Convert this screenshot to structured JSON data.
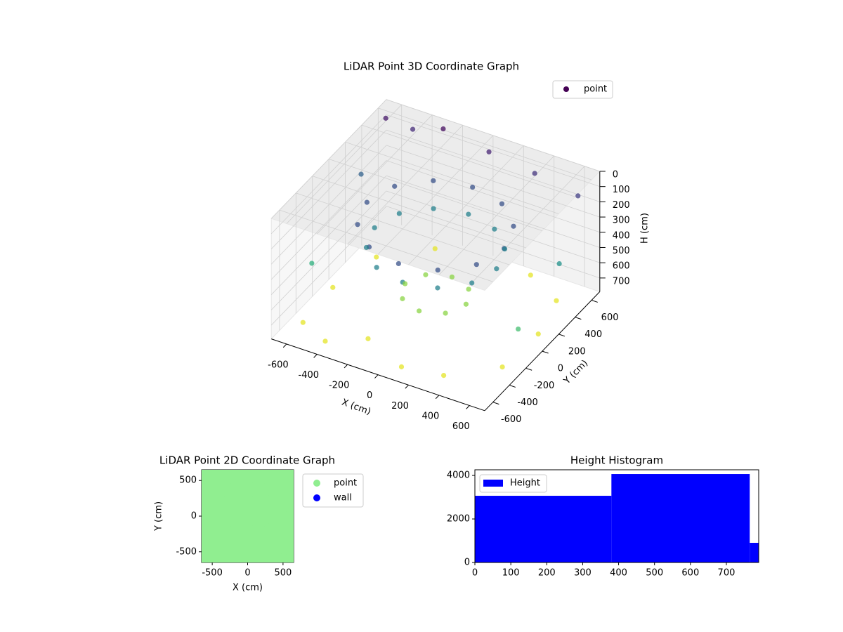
{
  "chart_data": [
    {
      "type": "scatter3d",
      "title": "LiDAR Point 3D Coordinate Graph",
      "x_label": "X (cm)",
      "y_label": "Y (cm)",
      "z_label": "H (cm)",
      "xlim": [
        -700,
        700
      ],
      "ylim": [
        -700,
        700
      ],
      "zlim": [
        0,
        790
      ],
      "xticks": [
        -600,
        -400,
        -200,
        0,
        200,
        400,
        600
      ],
      "yticks": [
        -600,
        -400,
        -200,
        0,
        200,
        400,
        600
      ],
      "zticks": [
        0,
        100,
        200,
        300,
        400,
        500,
        600,
        700
      ],
      "colormap": "viridis",
      "legend": "upper right",
      "series": [
        {
          "name": "point",
          "color": "#440154",
          "x": [
            450,
            390,
            225,
            0,
            -225,
            -390,
            -450,
            -390,
            -225,
            0,
            225,
            390,
            400,
            346,
            200,
            0,
            -200,
            -346,
            -400,
            -346,
            -200,
            0,
            200,
            346,
            200,
            141,
            0,
            -141,
            -200,
            -141,
            0,
            141,
            -600,
            -400,
            -200,
            100,
            350,
            600,
            620,
            550,
            -550,
            -620,
            300,
            -300,
            -650,
            -500,
            -300,
            0,
            300,
            600,
            -650,
            650,
            -650,
            650
          ],
          "y": [
            0,
            225,
            390,
            450,
            390,
            225,
            0,
            -225,
            -390,
            -450,
            -390,
            -225,
            0,
            200,
            346,
            400,
            346,
            200,
            0,
            -200,
            -346,
            -400,
            -346,
            -200,
            0,
            141,
            200,
            141,
            0,
            -141,
            -200,
            -141,
            -500,
            -600,
            -450,
            -600,
            -550,
            -300,
            100,
            450,
            300,
            -100,
            600,
            550,
            600,
            650,
            650,
            650,
            650,
            620,
            300,
            300,
            -300,
            -200
          ],
          "z": [
            200,
            200,
            200,
            200,
            200,
            200,
            200,
            200,
            200,
            200,
            200,
            200,
            350,
            350,
            350,
            350,
            350,
            350,
            350,
            350,
            350,
            350,
            350,
            350,
            650,
            650,
            650,
            650,
            650,
            650,
            650,
            650,
            760,
            760,
            760,
            760,
            760,
            760,
            760,
            760,
            760,
            760,
            760,
            760,
            50,
            100,
            30,
            80,
            120,
            150,
            250,
            400,
            500,
            550
          ]
        }
      ]
    },
    {
      "type": "scatter",
      "title": "LiDAR Point 2D Coordinate Graph",
      "x_label": "X (cm)",
      "y_label": "Y (cm)",
      "xlim": [
        -650,
        650
      ],
      "ylim": [
        -650,
        650
      ],
      "xticks": [
        -500,
        0,
        500
      ],
      "yticks": [
        -500,
        0,
        500
      ],
      "legend": "outside right",
      "series": [
        {
          "name": "point",
          "color": "#90ee90",
          "x": [
            -600,
            -400,
            -200,
            0,
            200,
            400,
            600,
            -600,
            -400,
            -200,
            0,
            200,
            400,
            600,
            -600,
            -400,
            -200,
            0,
            200,
            400,
            600,
            -600,
            -400,
            -200,
            0,
            200,
            400,
            600,
            -600,
            -400,
            -200,
            0,
            200,
            400,
            600,
            -600,
            -400,
            -200,
            0,
            200,
            400,
            600,
            -600,
            -400,
            -200,
            0,
            200,
            400,
            600
          ],
          "y": [
            -600,
            -600,
            -600,
            -600,
            -600,
            -600,
            -600,
            -400,
            -400,
            -400,
            -400,
            -400,
            -400,
            -400,
            -200,
            -200,
            -200,
            -200,
            -200,
            -200,
            -200,
            0,
            0,
            0,
            0,
            0,
            0,
            0,
            200,
            200,
            200,
            200,
            200,
            200,
            200,
            400,
            400,
            400,
            400,
            400,
            400,
            400,
            600,
            600,
            600,
            600,
            600,
            600,
            600
          ]
        },
        {
          "name": "wall",
          "color": "#0000ff",
          "x": [],
          "y": []
        }
      ]
    },
    {
      "type": "histogram",
      "title": "Height Histogram",
      "legend": "upper left",
      "xlim": [
        0,
        790
      ],
      "ylim": [
        0,
        4260
      ],
      "xticks": [
        0,
        100,
        200,
        300,
        400,
        500,
        600,
        700
      ],
      "yticks": [
        0,
        2000,
        4000
      ],
      "series": [
        {
          "name": "Height",
          "color": "#0000ff",
          "bins": [
            0,
            380,
            765,
            790
          ],
          "values": [
            3065,
            4065,
            903
          ]
        }
      ]
    }
  ]
}
